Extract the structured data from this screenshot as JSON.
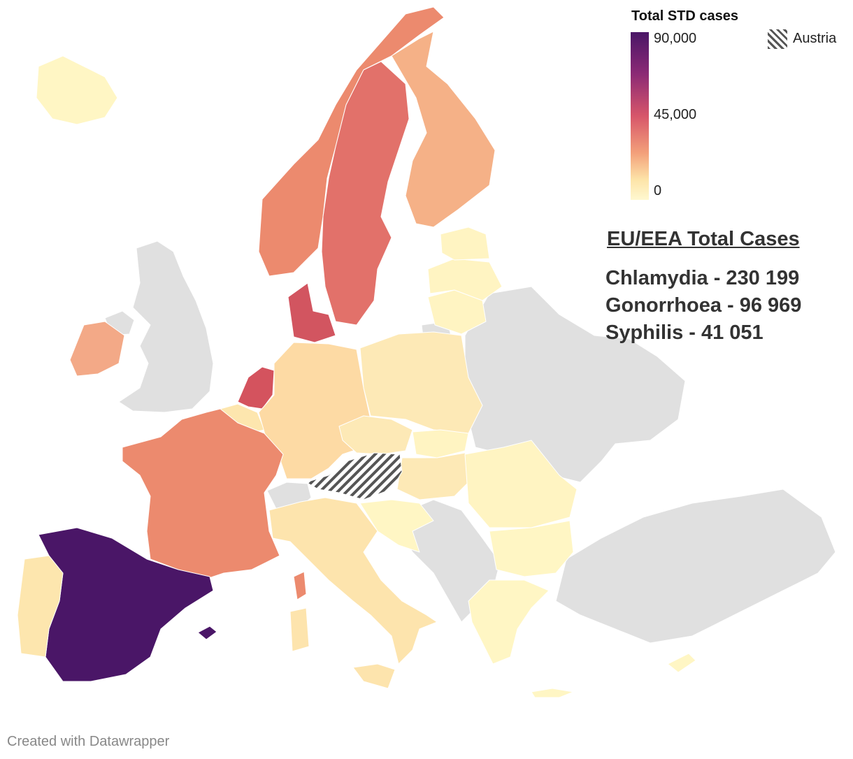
{
  "legend": {
    "title": "Total STD cases",
    "ticks": [
      "90,000",
      "45,000",
      "0"
    ],
    "scale_max": 90000,
    "scale_mid": 45000,
    "scale_min": 0,
    "hatched_label": "Austria"
  },
  "totals": {
    "heading": "EU/EEA Total Cases",
    "lines": [
      "Chlamydia - 230 199",
      "Gonorrhoea - 96 969",
      "Syphilis - 41 051"
    ]
  },
  "credit": "Created with Datawrapper",
  "colors": {
    "no_data": "#e0e0e0",
    "scale_high": "#4a1667",
    "scale_mid": "#d7566a",
    "scale_low": "#fff8d0",
    "hatch": "#555555"
  }
}
